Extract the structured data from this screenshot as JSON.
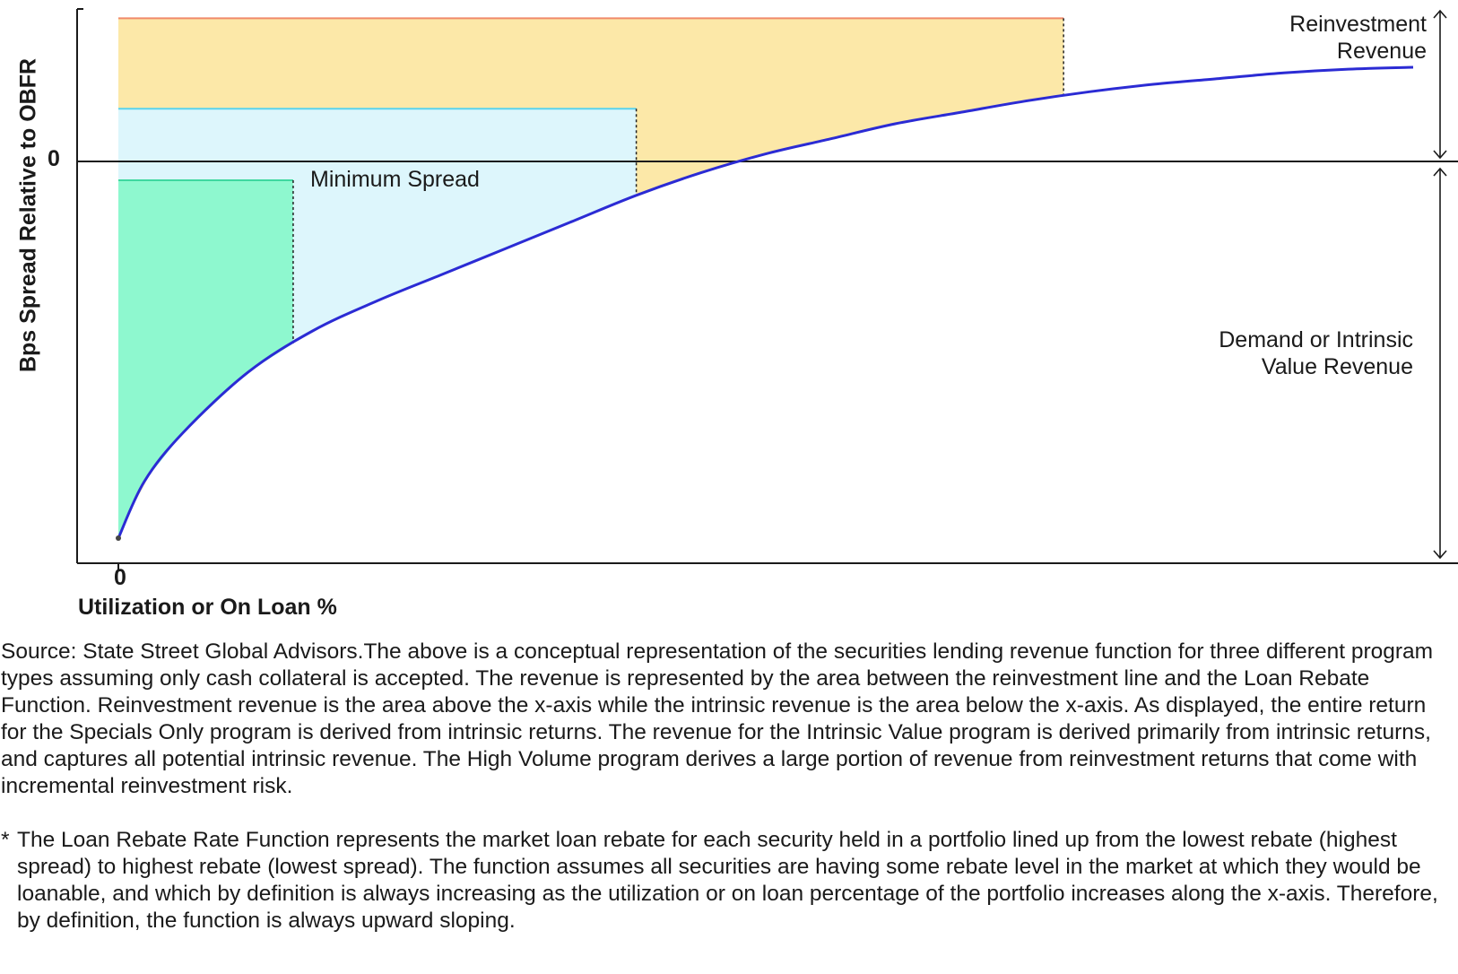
{
  "chart_data": {
    "type": "area",
    "title": "",
    "ylabel": "Bps Spread Relative to OBFR",
    "xlabel": "Utilization or On Loan %",
    "x_tick_label": "0",
    "y_tick_label": "0",
    "grid": false,
    "curve": {
      "name": "Loan Rebate Function",
      "color": "#2b2bd4",
      "x": [
        0,
        2,
        5,
        10,
        15,
        20,
        25,
        30,
        35,
        40,
        45,
        50,
        55,
        60,
        65,
        70,
        75,
        80,
        85,
        90,
        95,
        100
      ],
      "y": [
        -100,
        -85,
        -72,
        -56,
        -45,
        -37,
        -30,
        -23,
        -16,
        -9,
        -3,
        2,
        6,
        10,
        13,
        16,
        18.5,
        20.5,
        22,
        23.5,
        24.5,
        25
      ]
    },
    "regions": [
      {
        "name": "High Volume",
        "x_end": 73,
        "level": 38,
        "fill": "#fce8a8",
        "edge": "#f08a6a"
      },
      {
        "name": "Intrinsic Value",
        "x_end": 40,
        "level": 14,
        "fill": "#ddf6fc",
        "edge": "#59d3ee"
      },
      {
        "name": "Specials Only",
        "x_end": 13.5,
        "level": -5,
        "fill": "#8ef8cf",
        "edge": "#3fd8a0"
      }
    ],
    "annotations": {
      "minimum_spread": "Minimum Spread",
      "reinvestment_line1": "Reinvestment",
      "reinvestment_line2": "Revenue",
      "demand_line1": "Demand or Intrinsic",
      "demand_line2": "Value Revenue"
    },
    "ylim": [
      -100,
      38
    ]
  },
  "footer": {
    "source": "Source: State Street Global Advisors.The above is a conceptual representation of the securities lending revenue function for three different program types assuming only cash collateral is accepted. The revenue is represented by the area between the reinvestment line and the Loan Rebate Function. Reinvestment revenue is the area above the x-axis while the intrinsic revenue is the area below the x-axis. As displayed, the entire return for the Specials Only program is derived from intrinsic returns. The revenue for the Intrinsic Value program is derived primarily from intrinsic returns, and captures all potential intrinsic revenue. The High Volume program derives a large portion of revenue from reinvestment returns that come with incremental reinvestment risk.",
    "footnote_marker": "*",
    "footnote": "The Loan Rebate Rate Function represents the market loan rebate for each security held in a portfolio lined up from the lowest rebate (highest spread) to highest rebate (lowest spread). The function assumes all securities are having some rebate level in the market at which they would be loanable, and which by definition is always increasing as the utilization or on loan percentage of the portfolio increases along the x-axis. Therefore, by definition, the function is always upward sloping."
  }
}
